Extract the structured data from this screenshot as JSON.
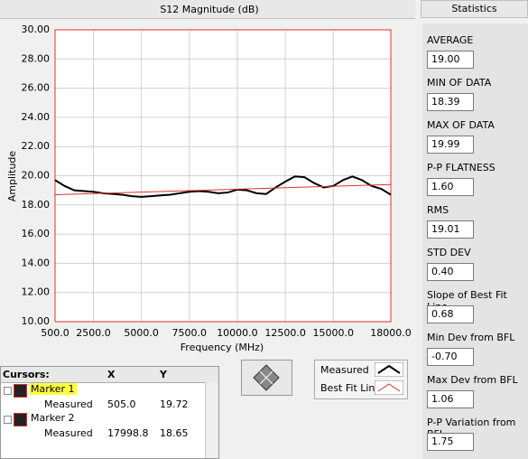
{
  "chart_data": {
    "type": "line",
    "title": "S12 Magnitude (dB)",
    "x_label": "Frequency (MHz)",
    "y_label": "Amplitude",
    "xlim": [
      500,
      18000
    ],
    "xticks": [
      {
        "value": 500,
        "label": "500.0"
      },
      {
        "value": 2500,
        "label": "2500.0"
      },
      {
        "value": 5000,
        "label": "5000.0"
      },
      {
        "value": 7500,
        "label": "7500.0"
      },
      {
        "value": 10000,
        "label": "10000.0"
      },
      {
        "value": 12500,
        "label": "12500.0"
      },
      {
        "value": 15000,
        "label": "15000.0"
      },
      {
        "value": 18000,
        "label": "18000.0"
      }
    ],
    "ylim": [
      10,
      30
    ],
    "yticks": [
      {
        "value": 10,
        "label": "10.00"
      },
      {
        "value": 12,
        "label": "12.00"
      },
      {
        "value": 14,
        "label": "14.00"
      },
      {
        "value": 16,
        "label": "16.00"
      },
      {
        "value": 18,
        "label": "18.00"
      },
      {
        "value": 20,
        "label": "20.00"
      },
      {
        "value": 22,
        "label": "22.00"
      },
      {
        "value": 24,
        "label": "24.00"
      },
      {
        "value": 26,
        "label": "26.00"
      },
      {
        "value": 28,
        "label": "28.00"
      },
      {
        "value": 30,
        "label": "30.00"
      }
    ],
    "grid": true,
    "series": [
      {
        "name": "Measured",
        "color": "#000000",
        "x": [
          500,
          1000,
          1500,
          2000,
          2500,
          3000,
          3500,
          4000,
          4500,
          5000,
          5500,
          6000,
          6500,
          7000,
          7500,
          8000,
          8500,
          9000,
          9500,
          10000,
          10500,
          11000,
          11500,
          12000,
          12500,
          13000,
          13500,
          14000,
          14500,
          15000,
          15500,
          16000,
          16500,
          17000,
          17500,
          18000
        ],
        "values": [
          19.7,
          19.3,
          19.0,
          18.95,
          18.9,
          18.8,
          18.75,
          18.7,
          18.6,
          18.55,
          18.6,
          18.65,
          18.7,
          18.8,
          18.9,
          18.95,
          18.9,
          18.8,
          18.85,
          19.05,
          19.0,
          18.8,
          18.75,
          19.2,
          19.6,
          19.95,
          19.9,
          19.5,
          19.2,
          19.3,
          19.7,
          19.95,
          19.7,
          19.3,
          19.1,
          18.7
        ]
      },
      {
        "name": "Best Fit Line",
        "color": "#e03030",
        "x": [
          500,
          18000
        ],
        "values": [
          18.7,
          19.4
        ]
      }
    ]
  },
  "statistics": {
    "title": "Statistics",
    "items": [
      {
        "label": "AVERAGE",
        "value": "19.00"
      },
      {
        "label": "MIN OF DATA",
        "value": "18.39"
      },
      {
        "label": "MAX OF DATA",
        "value": "19.99"
      },
      {
        "label": "P-P FLATNESS",
        "value": "1.60"
      },
      {
        "label": "RMS",
        "value": "19.01"
      },
      {
        "label": "STD DEV",
        "value": "0.40"
      },
      {
        "label": "Slope of Best Fit Line",
        "value": "0.68"
      },
      {
        "label": "Min Dev from BFL",
        "value": "-0.70"
      },
      {
        "label": "Max Dev from BFL",
        "value": "1.06"
      },
      {
        "label": "P-P Variation from BFL",
        "value": "1.75"
      }
    ]
  },
  "cursors": {
    "headers": [
      "Cursors:",
      "X",
      "Y"
    ],
    "rows": [
      {
        "name": "Marker 1",
        "label": "Measured",
        "x": "505.0",
        "y": "19.72"
      },
      {
        "name": "Marker 2",
        "label": "Measured",
        "x": "17998.8",
        "y": "18.65"
      }
    ]
  }
}
